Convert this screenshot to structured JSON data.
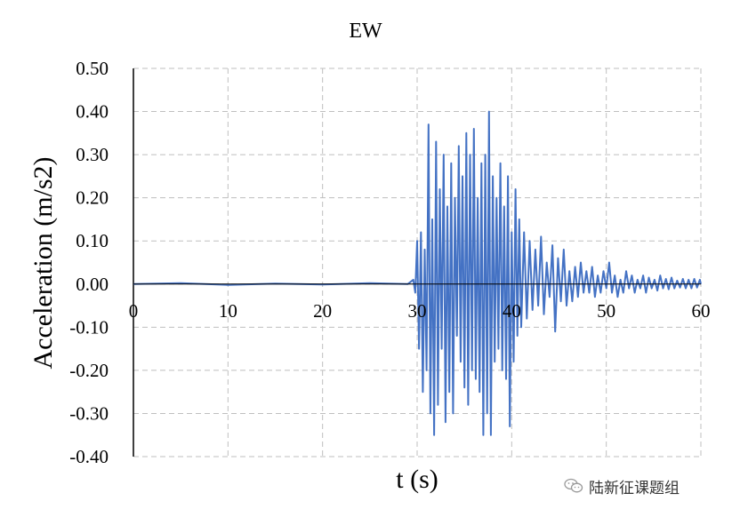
{
  "chart_data": {
    "type": "line",
    "title": "EW",
    "xlabel": "t (s)",
    "ylabel": "Acceleration (m/s2)",
    "xlim": [
      0,
      60
    ],
    "ylim": [
      -0.4,
      0.5
    ],
    "x_ticks": [
      0,
      10,
      20,
      30,
      40,
      50,
      60
    ],
    "y_ticks": [
      0.5,
      0.4,
      0.3,
      0.2,
      0.1,
      0.0,
      -0.1,
      -0.2,
      -0.3,
      -0.4
    ],
    "x_tick_labels": [
      "0",
      "10",
      "20",
      "30",
      "40",
      "50",
      "60"
    ],
    "y_tick_labels": [
      "0.50",
      "0.40",
      "0.30",
      "0.20",
      "0.10",
      "0.00",
      "-0.10",
      "-0.20",
      "-0.30",
      "-0.40"
    ],
    "grid": true,
    "line_color": "#4472c4",
    "series": [
      {
        "x": [
          0,
          5,
          10,
          15,
          20,
          25,
          29,
          29.6,
          29.8,
          30.0,
          30.2,
          30.4,
          30.6,
          30.8,
          31.0,
          31.2,
          31.4,
          31.6,
          31.8,
          32.0,
          32.2,
          32.4,
          32.6,
          32.8,
          33.0,
          33.2,
          33.4,
          33.6,
          33.8,
          34.0,
          34.2,
          34.4,
          34.6,
          34.8,
          35.0,
          35.2,
          35.4,
          35.6,
          35.8,
          36.0,
          36.2,
          36.4,
          36.6,
          36.8,
          37.0,
          37.2,
          37.4,
          37.6,
          37.8,
          38.0,
          38.2,
          38.4,
          38.6,
          38.8,
          39.0,
          39.2,
          39.4,
          39.6,
          39.8,
          40.0,
          40.2,
          40.4,
          40.6,
          40.8,
          41.0,
          41.3,
          41.6,
          41.9,
          42.2,
          42.5,
          42.8,
          43.1,
          43.4,
          43.7,
          44.0,
          44.3,
          44.6,
          44.9,
          45.2,
          45.5,
          45.8,
          46.1,
          46.4,
          46.7,
          47.0,
          47.3,
          47.6,
          47.9,
          48.2,
          48.5,
          48.8,
          49.1,
          49.4,
          49.7,
          50.0,
          50.3,
          50.6,
          50.9,
          51.2,
          51.5,
          51.8,
          52.1,
          52.4,
          52.7,
          53.0,
          53.3,
          53.6,
          53.9,
          54.2,
          54.5,
          54.8,
          55.1,
          55.4,
          55.7,
          56.0,
          56.3,
          56.6,
          56.9,
          57.2,
          57.5,
          57.8,
          58.1,
          58.4,
          58.7,
          59.0,
          59.3,
          59.6,
          59.9,
          60.0
        ],
        "values": [
          0.0,
          0.002,
          -0.002,
          0.001,
          -0.001,
          0.002,
          0.0,
          0.01,
          -0.02,
          0.1,
          -0.15,
          0.12,
          -0.25,
          0.08,
          -0.2,
          0.37,
          -0.3,
          0.15,
          -0.35,
          0.33,
          -0.28,
          0.22,
          -0.15,
          0.3,
          -0.32,
          0.18,
          -0.25,
          0.28,
          -0.3,
          0.2,
          -0.12,
          0.32,
          -0.18,
          0.25,
          -0.24,
          0.35,
          -0.28,
          0.3,
          -0.2,
          0.36,
          -0.22,
          0.2,
          -0.25,
          0.28,
          -0.35,
          0.3,
          -0.3,
          0.4,
          -0.35,
          0.25,
          -0.18,
          0.2,
          -0.15,
          0.28,
          -0.2,
          0.18,
          -0.22,
          0.25,
          -0.33,
          0.12,
          -0.18,
          0.22,
          -0.12,
          0.15,
          -0.1,
          0.12,
          -0.08,
          0.1,
          -0.06,
          0.08,
          -0.05,
          0.11,
          -0.07,
          0.05,
          -0.03,
          0.09,
          -0.11,
          0.06,
          -0.04,
          0.08,
          -0.05,
          0.03,
          -0.04,
          0.04,
          -0.03,
          0.05,
          -0.02,
          0.03,
          -0.02,
          0.04,
          -0.03,
          0.02,
          -0.02,
          0.03,
          -0.01,
          0.05,
          -0.02,
          0.02,
          -0.03,
          0.01,
          -0.02,
          0.03,
          -0.01,
          0.02,
          -0.02,
          0.01,
          -0.01,
          0.02,
          -0.02,
          0.015,
          -0.01,
          0.01,
          -0.015,
          0.02,
          -0.01,
          0.012,
          -0.012,
          0.015,
          -0.01,
          0.008,
          -0.008,
          0.012,
          -0.01,
          0.01,
          -0.01,
          0.012,
          -0.008,
          0.01,
          0.0
        ]
      }
    ]
  },
  "watermark": {
    "text": "陆新征课题组",
    "icon": "wechat-icon"
  }
}
